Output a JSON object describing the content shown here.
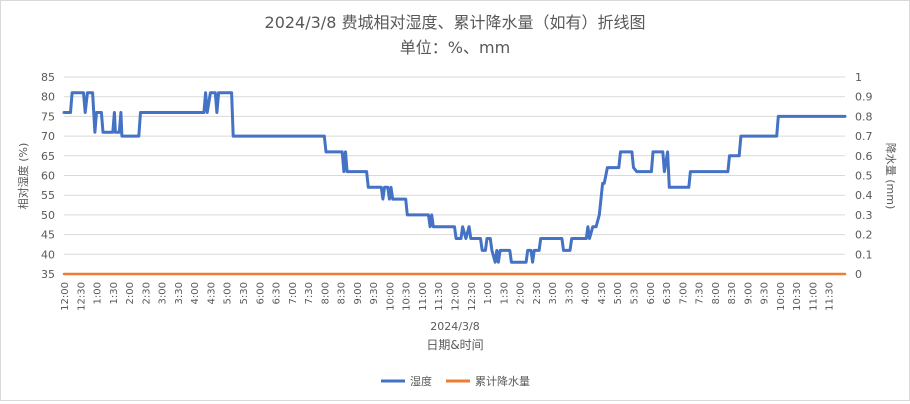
{
  "chart_data": {
    "type": "line",
    "title": "2024/3/8 费城相对湿度、累计降水量（如有）折线图",
    "subtitle": "单位：%、mm",
    "xlabel": "日期&时间",
    "x_group_label": "2024/3/8",
    "ylabel_left": "相对湿度 (%)",
    "ylabel_right": "降水量 (mm)",
    "ylim_left": [
      35,
      85
    ],
    "yticks_left": [
      "35",
      "40",
      "45",
      "50",
      "55",
      "60",
      "65",
      "70",
      "75",
      "80",
      "85"
    ],
    "ylim_right": [
      0,
      1
    ],
    "yticks_right": [
      "0",
      "0.1",
      "0.2",
      "0.3",
      "0.4",
      "0.5",
      "0.6",
      "0.7",
      "0.8",
      "0.9",
      "1"
    ],
    "xticks": [
      "12:00",
      "12:30",
      "1:00",
      "1:30",
      "2:00",
      "2:30",
      "3:00",
      "3:30",
      "4:00",
      "4:30",
      "5:00",
      "5:30",
      "6:00",
      "6:30",
      "7:00",
      "7:30",
      "8:00",
      "8:30",
      "9:00",
      "9:30",
      "10:00",
      "10:30",
      "11:00",
      "11:30",
      "12:00",
      "12:30",
      "1:00",
      "1:30",
      "2:00",
      "2:30",
      "3:00",
      "3:30",
      "4:00",
      "4:30",
      "5:00",
      "5:30",
      "6:00",
      "6:30",
      "7:00",
      "7:30",
      "8:00",
      "8:30",
      "9:00",
      "9:30",
      "10:00",
      "10:30",
      "11:00",
      "11:30"
    ],
    "x_range_hours": [
      0,
      24
    ],
    "grid": true,
    "legend_position": "bottom",
    "series": [
      {
        "name": "湿度",
        "axis": "left",
        "color": "#4472C4",
        "points": [
          [
            0.0,
            76
          ],
          [
            0.2,
            76
          ],
          [
            0.25,
            81
          ],
          [
            0.6,
            81
          ],
          [
            0.65,
            76
          ],
          [
            0.72,
            81
          ],
          [
            0.88,
            81
          ],
          [
            0.95,
            71
          ],
          [
            1.0,
            76
          ],
          [
            1.15,
            76
          ],
          [
            1.2,
            71
          ],
          [
            1.5,
            71
          ],
          [
            1.55,
            76
          ],
          [
            1.58,
            71
          ],
          [
            1.7,
            71
          ],
          [
            1.75,
            76
          ],
          [
            1.78,
            70
          ],
          [
            2.3,
            70
          ],
          [
            2.35,
            76
          ],
          [
            4.3,
            76
          ],
          [
            4.35,
            81
          ],
          [
            4.4,
            76
          ],
          [
            4.5,
            81
          ],
          [
            4.65,
            81
          ],
          [
            4.7,
            76
          ],
          [
            4.75,
            81
          ],
          [
            5.15,
            81
          ],
          [
            5.2,
            70
          ],
          [
            8.0,
            70
          ],
          [
            8.05,
            66
          ],
          [
            8.55,
            66
          ],
          [
            8.6,
            61
          ],
          [
            8.65,
            66
          ],
          [
            8.7,
            61
          ],
          [
            9.3,
            61
          ],
          [
            9.35,
            57
          ],
          [
            9.75,
            57
          ],
          [
            9.8,
            54
          ],
          [
            9.85,
            57
          ],
          [
            9.95,
            57
          ],
          [
            10.0,
            54
          ],
          [
            10.05,
            57
          ],
          [
            10.1,
            54
          ],
          [
            10.5,
            54
          ],
          [
            10.55,
            50
          ],
          [
            11.2,
            50
          ],
          [
            11.25,
            47
          ],
          [
            11.3,
            50
          ],
          [
            11.35,
            47
          ],
          [
            12.0,
            47
          ],
          [
            12.05,
            44
          ],
          [
            12.2,
            44
          ],
          [
            12.25,
            47
          ],
          [
            12.35,
            44
          ],
          [
            12.45,
            47
          ],
          [
            12.5,
            44
          ],
          [
            12.8,
            44
          ],
          [
            12.85,
            41
          ],
          [
            12.95,
            41
          ],
          [
            13.0,
            44
          ],
          [
            13.1,
            44
          ],
          [
            13.15,
            41
          ],
          [
            13.25,
            38
          ],
          [
            13.3,
            41
          ],
          [
            13.35,
            38
          ],
          [
            13.4,
            41
          ],
          [
            13.7,
            41
          ],
          [
            13.75,
            38
          ],
          [
            14.2,
            38
          ],
          [
            14.25,
            41
          ],
          [
            14.35,
            41
          ],
          [
            14.4,
            38
          ],
          [
            14.45,
            41
          ],
          [
            14.6,
            41
          ],
          [
            14.65,
            44
          ],
          [
            15.3,
            44
          ],
          [
            15.35,
            41
          ],
          [
            15.55,
            41
          ],
          [
            15.6,
            44
          ],
          [
            16.05,
            44
          ],
          [
            16.1,
            47
          ],
          [
            16.15,
            44
          ],
          [
            16.25,
            47
          ],
          [
            16.35,
            47
          ],
          [
            16.45,
            50
          ],
          [
            16.55,
            58
          ],
          [
            16.6,
            58
          ],
          [
            16.7,
            62
          ],
          [
            17.05,
            62
          ],
          [
            17.1,
            66
          ],
          [
            17.45,
            66
          ],
          [
            17.5,
            62
          ],
          [
            17.6,
            61
          ],
          [
            18.05,
            61
          ],
          [
            18.1,
            66
          ],
          [
            18.4,
            66
          ],
          [
            18.45,
            61
          ],
          [
            18.55,
            66
          ],
          [
            18.6,
            57
          ],
          [
            19.2,
            57
          ],
          [
            19.25,
            61
          ],
          [
            20.4,
            61
          ],
          [
            20.45,
            65
          ],
          [
            20.75,
            65
          ],
          [
            20.8,
            70
          ],
          [
            21.9,
            70
          ],
          [
            21.95,
            75
          ],
          [
            24.0,
            75
          ]
        ]
      },
      {
        "name": "累计降水量",
        "axis": "right",
        "color": "#ED7D31",
        "points": [
          [
            0.0,
            0
          ],
          [
            24.0,
            0
          ]
        ]
      }
    ]
  }
}
